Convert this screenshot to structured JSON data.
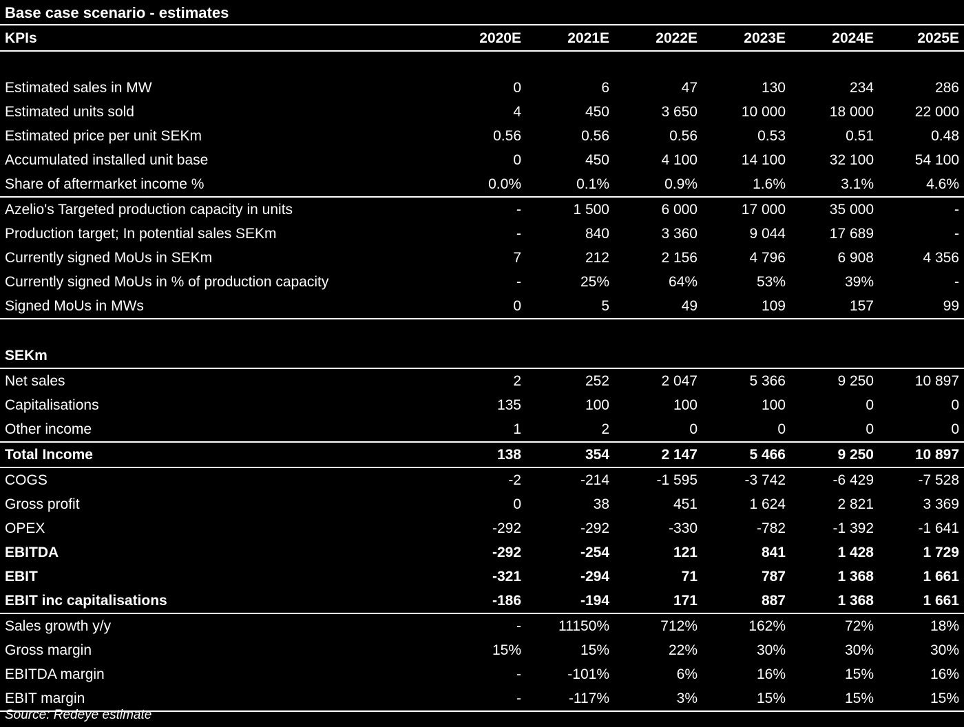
{
  "title": "Base case scenario - estimates",
  "header": {
    "label": "KPIs",
    "years": [
      "2020E",
      "2021E",
      "2022E",
      "2023E",
      "2024E",
      "2025E"
    ]
  },
  "kpi_group_1": [
    {
      "label": "Estimated sales in MW",
      "values": [
        "0",
        "6",
        "47",
        "130",
        "234",
        "286"
      ]
    },
    {
      "label": "Estimated units sold",
      "values": [
        "4",
        "450",
        "3 650",
        "10 000",
        "18 000",
        "22 000"
      ]
    },
    {
      "label": "Estimated price per unit SEKm",
      "values": [
        "0.56",
        "0.56",
        "0.56",
        "0.53",
        "0.51",
        "0.48"
      ]
    },
    {
      "label": "Accumulated installed unit base",
      "values": [
        "0",
        "450",
        "4 100",
        "14 100",
        "32 100",
        "54 100"
      ]
    },
    {
      "label": "Share of aftermarket income %",
      "values": [
        "0.0%",
        "0.1%",
        "0.9%",
        "1.6%",
        "3.1%",
        "4.6%"
      ]
    }
  ],
  "kpi_group_2": [
    {
      "label": "Azelio's Targeted production capacity in units",
      "values": [
        "-",
        "1 500",
        "6 000",
        "17 000",
        "35 000",
        "-"
      ]
    },
    {
      "label": "Production target; In potential sales SEKm",
      "values": [
        "-",
        "840",
        "3 360",
        "9 044",
        "17 689",
        "-"
      ]
    },
    {
      "label": "Currently signed MoUs in SEKm",
      "values": [
        "7",
        "212",
        "2 156",
        "4 796",
        "6 908",
        "4 356"
      ]
    },
    {
      "label": "Currently signed MoUs in % of production capacity",
      "values": [
        "-",
        "25%",
        "64%",
        "53%",
        "39%",
        "-"
      ]
    },
    {
      "label": "Signed MoUs in MWs",
      "values": [
        "0",
        "5",
        "49",
        "109",
        "157",
        "99"
      ]
    }
  ],
  "sekm_label": "SEKm",
  "income_rows": [
    {
      "label": "Net sales",
      "values": [
        "2",
        "252",
        "2 047",
        "5 366",
        "9 250",
        "10 897"
      ]
    },
    {
      "label": "Capitalisations",
      "values": [
        "135",
        "100",
        "100",
        "100",
        "0",
        "0"
      ]
    },
    {
      "label": "Other income",
      "values": [
        "1",
        "2",
        "0",
        "0",
        "0",
        "0"
      ]
    }
  ],
  "total_income": {
    "label": "Total Income",
    "values": [
      "138",
      "354",
      "2 147",
      "5 466",
      "9 250",
      "10 897"
    ]
  },
  "pl_rows": [
    {
      "label": "COGS",
      "values": [
        "-2",
        "-214",
        "-1 595",
        "-3 742",
        "-6 429",
        "-7 528"
      ],
      "bold": false
    },
    {
      "label": "Gross profit",
      "values": [
        "0",
        "38",
        "451",
        "1 624",
        "2 821",
        "3 369"
      ],
      "bold": false
    },
    {
      "label": "OPEX",
      "values": [
        "-292",
        "-292",
        "-330",
        "-782",
        "-1 392",
        "-1 641"
      ],
      "bold": false
    },
    {
      "label": "EBITDA",
      "values": [
        "-292",
        "-254",
        "121",
        "841",
        "1 428",
        "1 729"
      ],
      "bold": true
    },
    {
      "label": "EBIT",
      "values": [
        "-321",
        "-294",
        "71",
        "787",
        "1 368",
        "1 661"
      ],
      "bold": true
    },
    {
      "label": "EBIT inc capitalisations",
      "values": [
        "-186",
        "-194",
        "171",
        "887",
        "1 368",
        "1 661"
      ],
      "bold": true
    }
  ],
  "ratio_rows": [
    {
      "label": "Sales growth y/y",
      "values": [
        "-",
        "11150%",
        "712%",
        "162%",
        "72%",
        "18%"
      ]
    },
    {
      "label": "Gross margin",
      "values": [
        "15%",
        "15%",
        "22%",
        "30%",
        "30%",
        "30%"
      ]
    },
    {
      "label": "EBITDA margin",
      "values": [
        "-",
        "-101%",
        "6%",
        "16%",
        "15%",
        "16%"
      ]
    },
    {
      "label": "EBIT margin",
      "values": [
        "-",
        "-117%",
        "3%",
        "15%",
        "15%",
        "15%"
      ]
    }
  ],
  "source": "Source: Redeye estimate",
  "colors": {
    "background": "#000000",
    "text": "#ffffff",
    "rule": "#ffffff"
  }
}
